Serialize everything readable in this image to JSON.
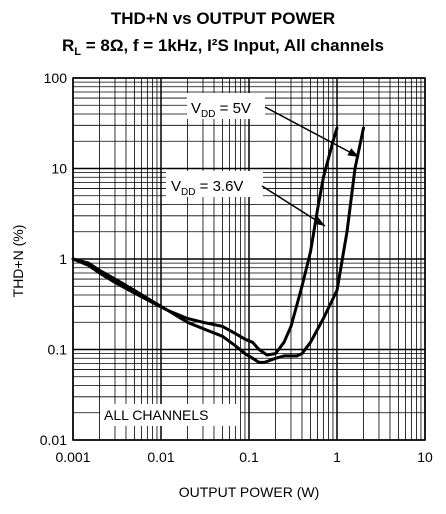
{
  "chart_data": {
    "type": "line",
    "title": "THD+N vs OUTPUT POWER",
    "subtitle": {
      "rl_main": "R",
      "rl_sub": "L",
      "rest": " = 8Ω, f = 1kHz, I²S Input, All channels"
    },
    "xlabel": "OUTPUT POWER (W)",
    "ylabel": "THD+N (%)",
    "xscale": "log",
    "yscale": "log",
    "xlim": [
      0.001,
      10
    ],
    "ylim": [
      0.01,
      100
    ],
    "x_ticks": [
      {
        "value": 0.001,
        "label": "0.001"
      },
      {
        "value": 0.01,
        "label": "0.01"
      },
      {
        "value": 0.1,
        "label": "0.1"
      },
      {
        "value": 1,
        "label": "1"
      },
      {
        "value": 10,
        "label": "10"
      }
    ],
    "y_ticks": [
      {
        "value": 0.01,
        "label": "0.01"
      },
      {
        "value": 0.1,
        "label": "0.1"
      },
      {
        "value": 1,
        "label": "1"
      },
      {
        "value": 10,
        "label": "10"
      },
      {
        "value": 100,
        "label": "100"
      }
    ],
    "grid": true,
    "series": [
      {
        "name": "VDD = 3.6V",
        "label_main": "V",
        "label_sub": "DD",
        "label_rest": " = 3.6V",
        "x": [
          0.001,
          0.0015,
          0.002,
          0.003,
          0.005,
          0.008,
          0.012,
          0.02,
          0.03,
          0.05,
          0.07,
          0.09,
          0.11,
          0.13,
          0.16,
          0.2,
          0.25,
          0.3,
          0.4,
          0.5,
          0.6,
          0.7,
          0.8,
          0.9,
          1.0
        ],
        "y": [
          1.0,
          0.85,
          0.7,
          0.55,
          0.42,
          0.33,
          0.27,
          0.22,
          0.2,
          0.18,
          0.15,
          0.13,
          0.12,
          0.1,
          0.087,
          0.09,
          0.12,
          0.18,
          0.5,
          1.2,
          3.5,
          8.0,
          13.0,
          20.0,
          28.0
        ]
      },
      {
        "name": "VDD = 5V",
        "label_main": "V",
        "label_sub": "DD",
        "label_rest": " = 5V",
        "x": [
          0.001,
          0.0015,
          0.002,
          0.003,
          0.005,
          0.008,
          0.012,
          0.02,
          0.03,
          0.05,
          0.07,
          0.09,
          0.11,
          0.13,
          0.15,
          0.2,
          0.25,
          0.3,
          0.35,
          0.4,
          0.5,
          0.7,
          1.0,
          1.3,
          1.6,
          2.0
        ],
        "y": [
          1.0,
          0.9,
          0.75,
          0.6,
          0.45,
          0.34,
          0.27,
          0.2,
          0.17,
          0.14,
          0.11,
          0.09,
          0.08,
          0.072,
          0.072,
          0.08,
          0.085,
          0.085,
          0.085,
          0.09,
          0.12,
          0.22,
          0.45,
          2.0,
          10.0,
          28.0
        ]
      }
    ],
    "annotations": {
      "all_channels": "ALL CHANNELS"
    }
  }
}
